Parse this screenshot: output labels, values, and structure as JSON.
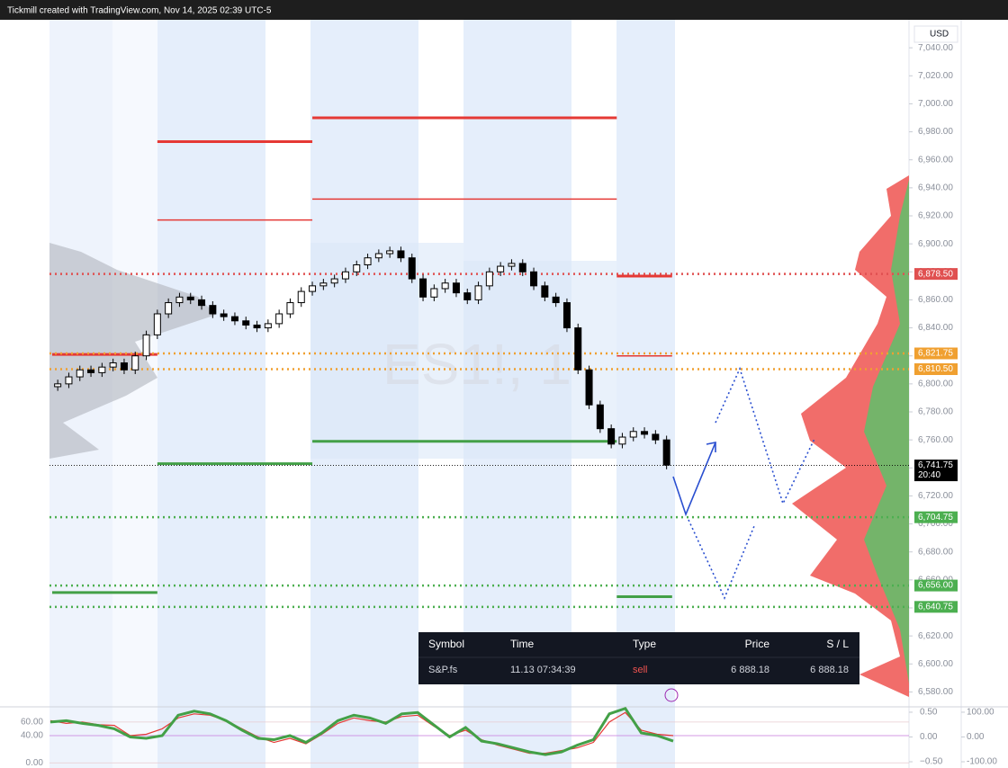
{
  "header": {
    "title": "Tickmill created with TradingView.com, Nov 14, 2025 02:39 UTC-5"
  },
  "chart_data": {
    "type": "candlestick",
    "watermark": "ES1!, 1",
    "currency": "USD",
    "ylim": [
      6570,
      7060
    ],
    "yticks": [
      {
        "value": 6580,
        "label": "6,580.00"
      },
      {
        "value": 6600,
        "label": "6,600.00"
      },
      {
        "value": 6620,
        "label": "6,620.00"
      },
      {
        "value": 6640,
        "label": "6,640.00"
      },
      {
        "value": 6660,
        "label": "6,660.00"
      },
      {
        "value": 6680,
        "label": "6,680.00"
      },
      {
        "value": 6700,
        "label": "6,700.00"
      },
      {
        "value": 6720,
        "label": "6,720.00"
      },
      {
        "value": 6740,
        "label": "6,740.00"
      },
      {
        "value": 6760,
        "label": "6,760.00"
      },
      {
        "value": 6780,
        "label": "6,780.00"
      },
      {
        "value": 6800,
        "label": "6,800.00"
      },
      {
        "value": 6820,
        "label": "6,820.00"
      },
      {
        "value": 6840,
        "label": "6,840.00"
      },
      {
        "value": 6860,
        "label": "6,860.00"
      },
      {
        "value": 6880,
        "label": "6,880.00"
      },
      {
        "value": 6900,
        "label": "6,900.00"
      },
      {
        "value": 6920,
        "label": "6,920.00"
      },
      {
        "value": 6940,
        "label": "6,940.00"
      },
      {
        "value": 6960,
        "label": "6,960.00"
      },
      {
        "value": 6980,
        "label": "6,980.00"
      },
      {
        "value": 7000,
        "label": "7,000.00"
      },
      {
        "value": 7020,
        "label": "7,020.00"
      },
      {
        "value": 7040,
        "label": "7,040.00"
      }
    ],
    "up_color": "#ffffff",
    "down_color": "#000000",
    "open": [
      6798,
      6800,
      6805,
      6810,
      6808,
      6812,
      6815,
      6810,
      6820,
      6835,
      6850,
      6858,
      6862,
      6860,
      6856,
      6850,
      6848,
      6845,
      6842,
      6840,
      6843,
      6850,
      6858,
      6866,
      6870,
      6872,
      6875,
      6880,
      6885,
      6890,
      6893,
      6895,
      6890,
      6875,
      6862,
      6868,
      6872,
      6865,
      6860,
      6870,
      6880,
      6884,
      6886,
      6880,
      6870,
      6862,
      6858,
      6840,
      6810,
      6785,
      6768,
      6757,
      6762,
      6766,
      6764,
      6760
    ],
    "high": [
      6803,
      6808,
      6813,
      6813,
      6815,
      6818,
      6818,
      6823,
      6838,
      6853,
      6861,
      6865,
      6865,
      6863,
      6859,
      6853,
      6851,
      6848,
      6845,
      6846,
      6853,
      6861,
      6869,
      6873,
      6875,
      6878,
      6883,
      6888,
      6893,
      6896,
      6898,
      6898,
      6893,
      6878,
      6871,
      6875,
      6875,
      6868,
      6873,
      6883,
      6887,
      6889,
      6889,
      6883,
      6873,
      6865,
      6861,
      6843,
      6813,
      6788,
      6771,
      6765,
      6769,
      6769,
      6767,
      6763
    ],
    "low": [
      6795,
      6797,
      6802,
      6805,
      6805,
      6809,
      6807,
      6807,
      6817,
      6832,
      6847,
      6855,
      6857,
      6853,
      6847,
      6845,
      6842,
      6839,
      6837,
      6837,
      6840,
      6847,
      6855,
      6863,
      6867,
      6869,
      6872,
      6877,
      6882,
      6887,
      6890,
      6887,
      6872,
      6859,
      6859,
      6865,
      6862,
      6857,
      6857,
      6867,
      6877,
      6881,
      6877,
      6867,
      6859,
      6855,
      6837,
      6807,
      6782,
      6765,
      6754,
      6754,
      6759,
      6761,
      6757,
      6739
    ],
    "close": [
      6800,
      6805,
      6810,
      6808,
      6812,
      6815,
      6810,
      6820,
      6835,
      6850,
      6858,
      6862,
      6860,
      6856,
      6850,
      6848,
      6845,
      6842,
      6840,
      6843,
      6850,
      6858,
      6866,
      6870,
      6872,
      6875,
      6880,
      6885,
      6890,
      6893,
      6895,
      6890,
      6875,
      6862,
      6868,
      6872,
      6865,
      6860,
      6870,
      6880,
      6884,
      6886,
      6880,
      6870,
      6862,
      6858,
      6840,
      6810,
      6785,
      6768,
      6757,
      6762,
      6766,
      6764,
      6760,
      6742
    ],
    "step_lines": [
      {
        "color": "#e53935",
        "breaks": [
          0,
          9.5,
          23.5,
          51,
          56
        ],
        "values": [
          6821,
          6973,
          6990,
          6877
        ]
      },
      {
        "color": "#e53935",
        "breaks": [
          0,
          9.5,
          23.5,
          51,
          56
        ],
        "values": [
          null,
          6917,
          6932,
          6820
        ]
      },
      {
        "color": "#43a047",
        "breaks": [
          0,
          9.5,
          23.5,
          51,
          56
        ],
        "values": [
          6651,
          6743,
          6759,
          6648
        ]
      }
    ],
    "levels": [
      {
        "value": 6878.5,
        "label": "6,878.50",
        "color": "#e05050"
      },
      {
        "value": 6821.75,
        "label": "6,821.75",
        "color": "#f0a030"
      },
      {
        "value": 6810.5,
        "label": "6,810.50",
        "color": "#f0a030"
      },
      {
        "value": 6741.75,
        "label": "6,741.75",
        "sub": "20:40",
        "color": "#000000"
      },
      {
        "value": 6704.75,
        "label": "6,704.75",
        "color": "#4caf50"
      },
      {
        "value": 6656,
        "label": "6,656.00",
        "color": "#4caf50"
      },
      {
        "value": 6640.75,
        "label": "6,640.75",
        "color": "#4caf50"
      }
    ],
    "oscillator": {
      "ylim": [
        -5,
        81
      ],
      "yticks": [
        {
          "value": 60,
          "label": "60.00"
        },
        {
          "value": 40,
          "label": "40.00"
        },
        {
          "value": 0,
          "label": "0.00"
        }
      ],
      "y2lim": [
        -0.59,
        0.59
      ],
      "y2ticks": [
        {
          "value": 0.5,
          "label": "0.50"
        },
        {
          "value": 0,
          "label": "0.00"
        },
        {
          "value": -0.5,
          "label": "−0.50"
        }
      ],
      "y3lim": [
        -118,
        118
      ],
      "y3ticks": [
        {
          "value": 100,
          "label": "100.00"
        },
        {
          "value": 0,
          "label": "0.00"
        },
        {
          "value": -100,
          "label": "-100.00"
        }
      ],
      "series": [
        {
          "color": "#e53935",
          "values": [
            62,
            58,
            60,
            56,
            55,
            40,
            42,
            50,
            66,
            72,
            70,
            62,
            50,
            38,
            30,
            36,
            28,
            42,
            58,
            66,
            62,
            60,
            68,
            70,
            54,
            40,
            48,
            34,
            26,
            20,
            14,
            14,
            18,
            22,
            30,
            60,
            74,
            48,
            42,
            40
          ]
        },
        {
          "color": "#43a047",
          "values": [
            60,
            62,
            58,
            55,
            50,
            38,
            36,
            40,
            70,
            76,
            72,
            62,
            48,
            36,
            34,
            40,
            30,
            44,
            62,
            70,
            66,
            58,
            72,
            74,
            56,
            38,
            52,
            32,
            28,
            22,
            16,
            12,
            16,
            26,
            34,
            72,
            80,
            44,
            40,
            32
          ]
        }
      ]
    }
  },
  "table": {
    "headers": [
      "Symbol",
      "Time",
      "Type",
      "Price",
      "S / L"
    ],
    "rows": [
      [
        "S&P.fs",
        "11.13 07:34:39",
        "sell",
        "6 888.18",
        "6 888.18"
      ]
    ]
  }
}
